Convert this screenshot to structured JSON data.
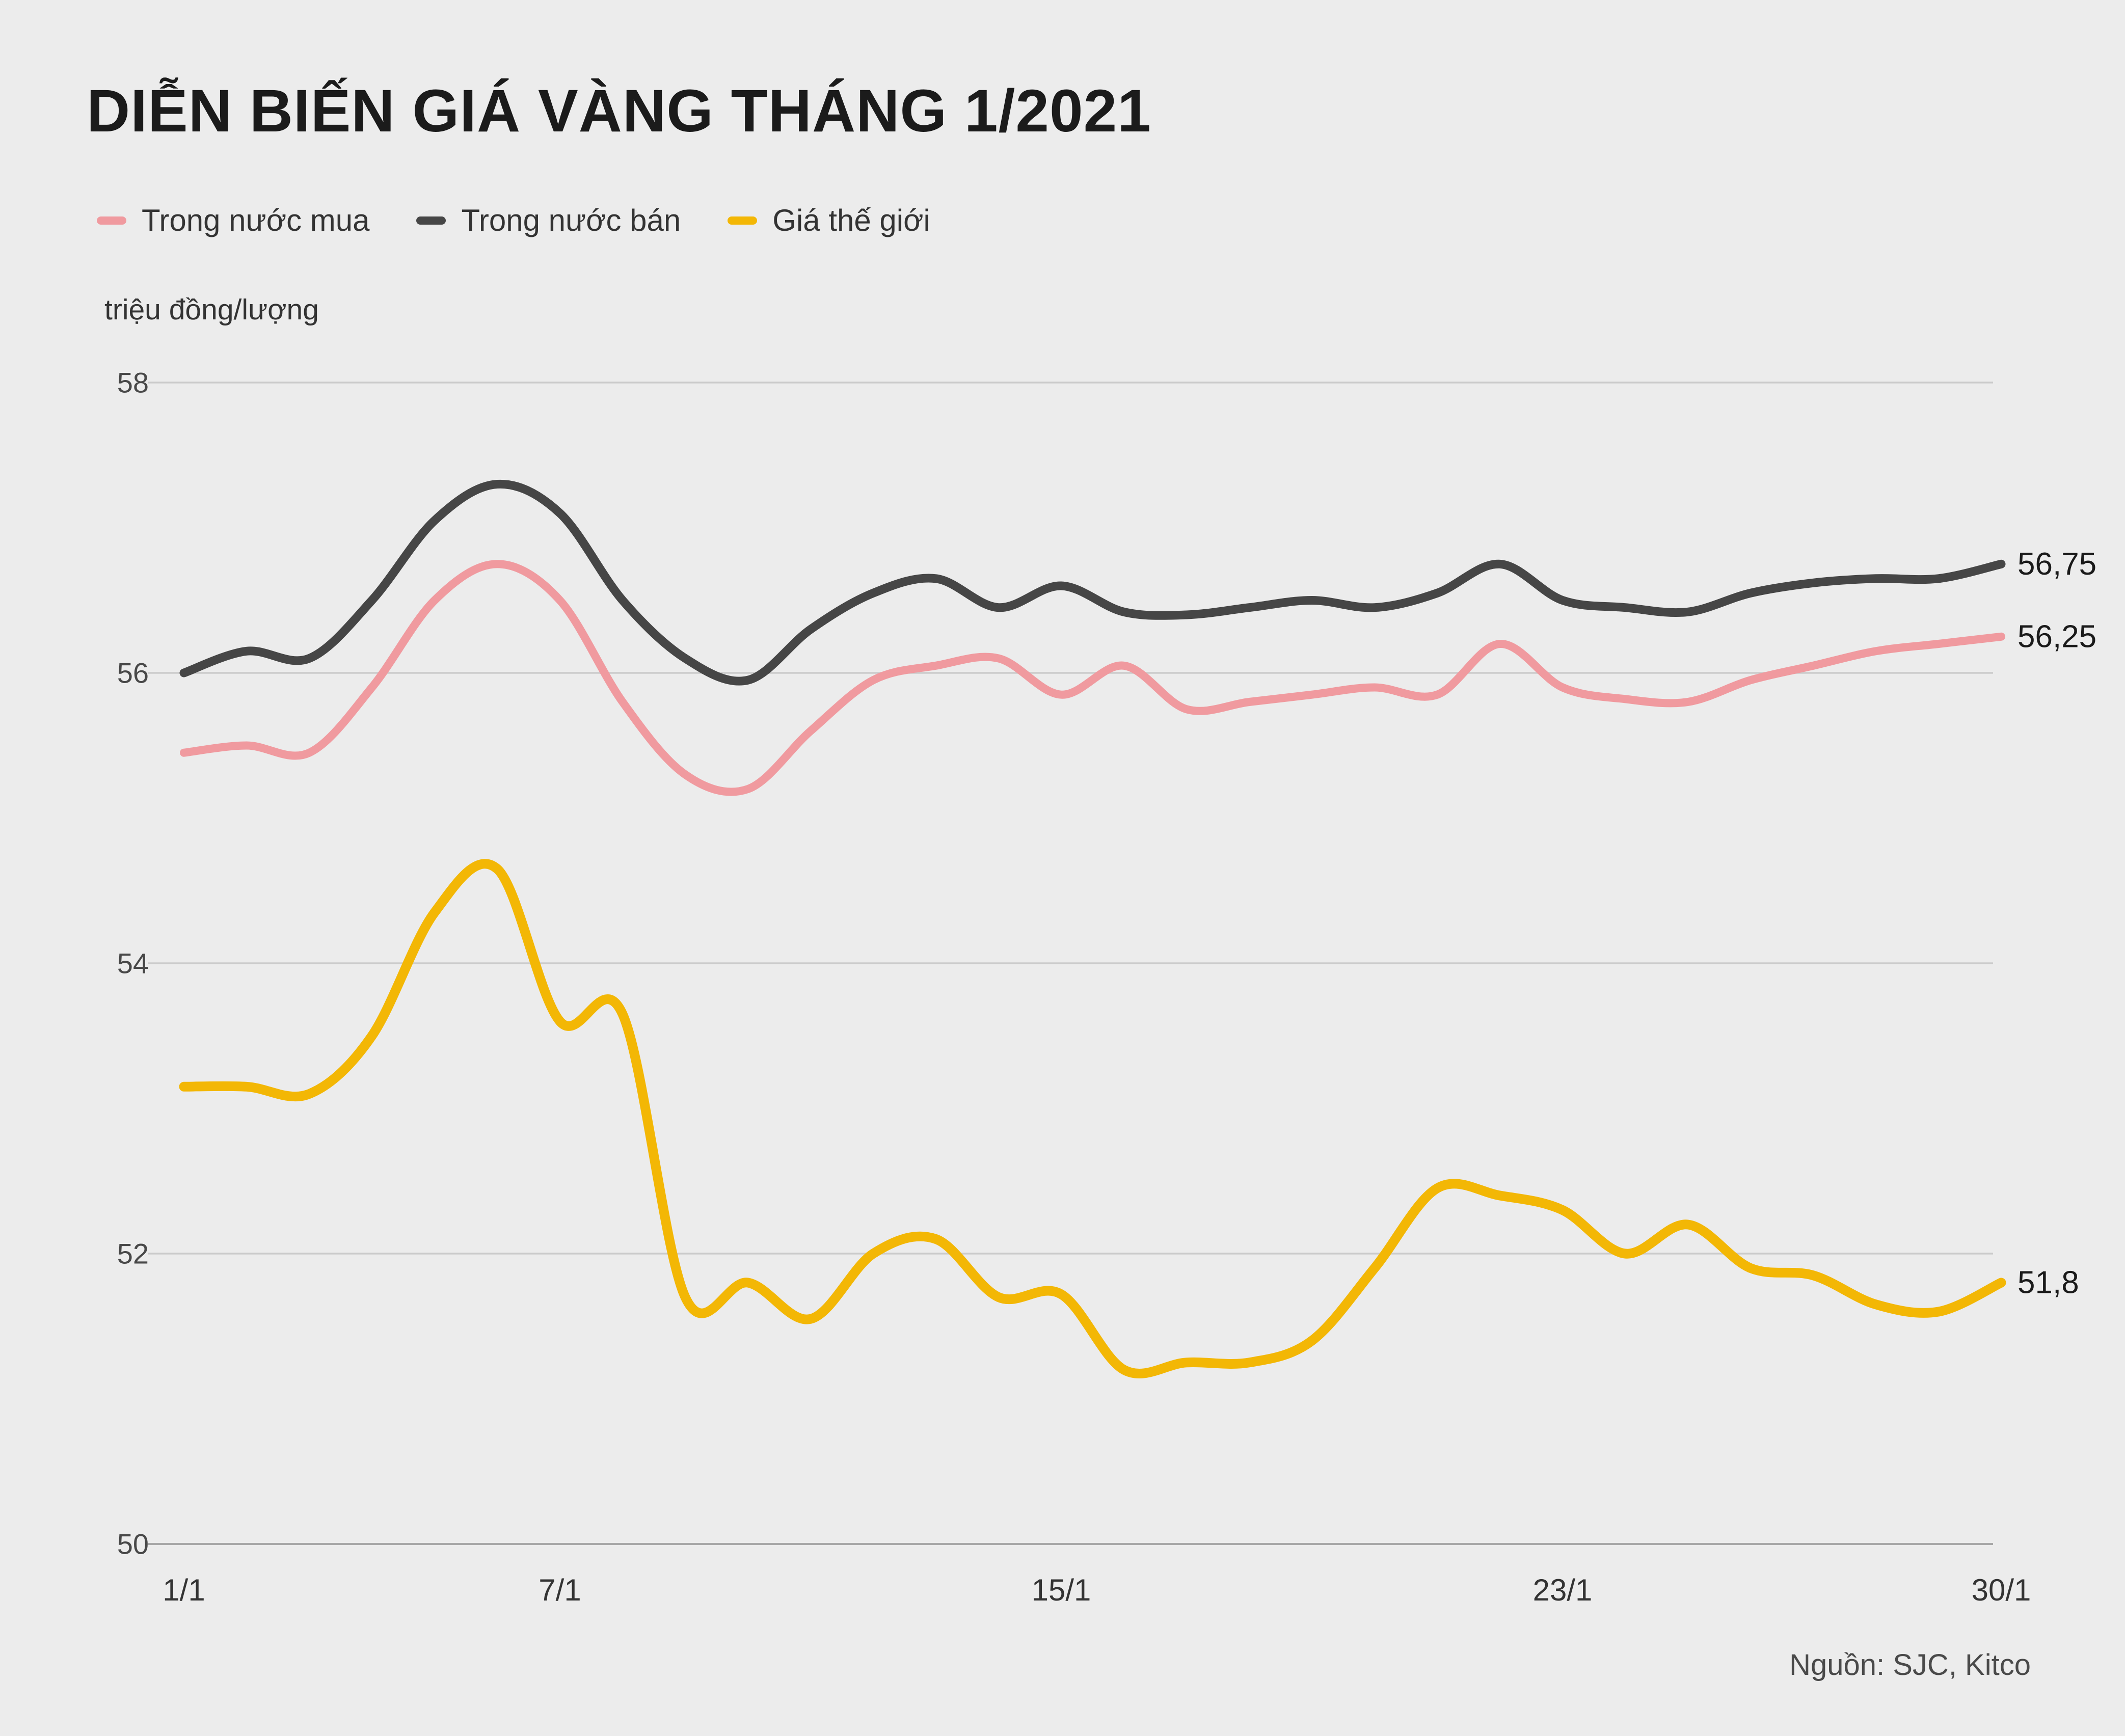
{
  "chart": {
    "title": "DIỄN BIẾN GIÁ VÀNG THÁNG 1/2021",
    "unit_label": "triệu đồng/lượng",
    "source": "Nguồn: SJC, Kitco"
  },
  "chart_data": {
    "type": "line",
    "title": "DIỄN BIẾN GIÁ VÀNG THÁNG 1/2021",
    "xlabel": "",
    "ylabel": "triệu đồng/lượng",
    "ylim": [
      50,
      58
    ],
    "yticks": [
      58,
      56,
      54,
      52,
      50
    ],
    "xticks": [
      {
        "label": "1/1",
        "day": 1
      },
      {
        "label": "7/1",
        "day": 7
      },
      {
        "label": "15/1",
        "day": 15
      },
      {
        "label": "23/1",
        "day": 23
      },
      {
        "label": "30/1",
        "day": 30
      }
    ],
    "x": [
      1,
      2,
      3,
      4,
      5,
      6,
      7,
      8,
      9,
      10,
      11,
      12,
      13,
      14,
      15,
      16,
      17,
      18,
      19,
      20,
      21,
      22,
      23,
      24,
      25,
      26,
      27,
      28,
      29,
      30
    ],
    "grid": "horizontal",
    "legend_position": "top-left",
    "series": [
      {
        "name": "Trong nước mua",
        "color": "#f09a9f",
        "end_label": "56,25",
        "values": [
          55.45,
          55.5,
          55.45,
          55.9,
          56.5,
          56.75,
          56.5,
          55.8,
          55.3,
          55.2,
          55.6,
          55.95,
          56.05,
          56.1,
          55.85,
          56.05,
          55.75,
          55.8,
          55.85,
          55.9,
          55.85,
          56.2,
          55.9,
          55.82,
          55.8,
          55.95,
          56.05,
          56.15,
          56.2,
          56.25
        ]
      },
      {
        "name": "Trong nước bán",
        "color": "#464646",
        "end_label": "56,75",
        "values": [
          56.0,
          56.15,
          56.1,
          56.5,
          57.05,
          57.3,
          57.1,
          56.5,
          56.1,
          55.95,
          56.3,
          56.55,
          56.65,
          56.45,
          56.6,
          56.42,
          56.4,
          56.45,
          56.5,
          56.45,
          56.55,
          56.75,
          56.5,
          56.45,
          56.42,
          56.55,
          56.62,
          56.65,
          56.65,
          56.75
        ]
      },
      {
        "name": "Giá thế giới",
        "color": "#f3b705",
        "end_label": "51,8",
        "values": [
          53.15,
          53.15,
          53.1,
          53.5,
          54.35,
          54.65,
          53.6,
          53.65,
          51.7,
          51.8,
          51.55,
          52.0,
          52.1,
          51.7,
          51.72,
          51.2,
          51.25,
          51.25,
          51.4,
          51.9,
          52.45,
          52.4,
          52.3,
          52.0,
          52.2,
          51.9,
          51.85,
          51.65,
          51.6,
          51.8
        ]
      }
    ]
  }
}
